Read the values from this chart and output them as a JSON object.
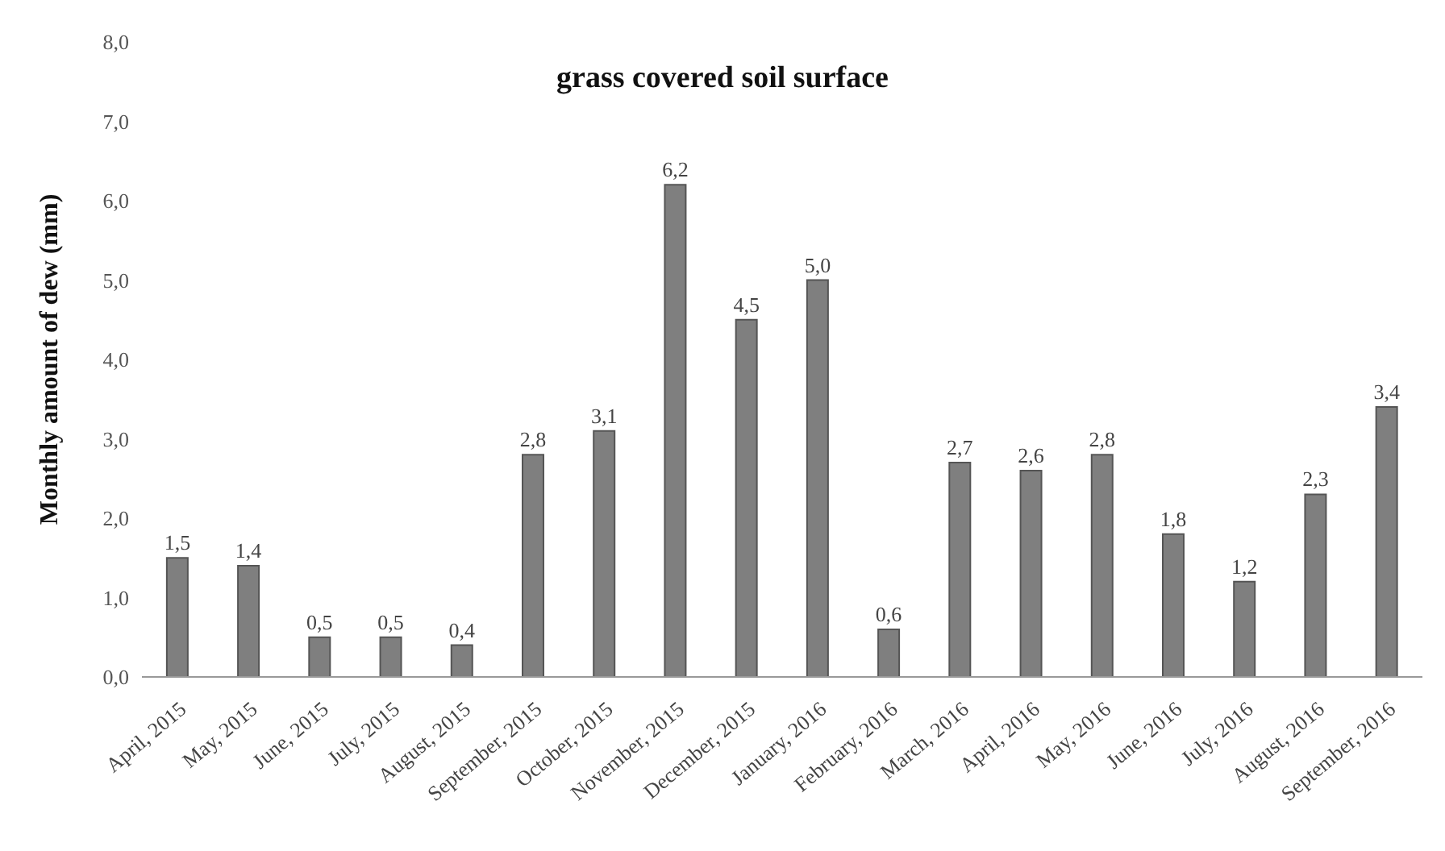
{
  "chart_data": {
    "type": "bar",
    "title": "grass covered soil surface",
    "ylabel": "Monthly amount of dew (mm)",
    "categories": [
      "April, 2015",
      "May, 2015",
      "June, 2015",
      "July, 2015",
      "August, 2015",
      "September, 2015",
      "October, 2015",
      "November, 2015",
      "December, 2015",
      "January, 2016",
      "February, 2016",
      "March, 2016",
      "April, 2016",
      "May, 2016",
      "June, 2016",
      "July, 2016",
      "August, 2016",
      "September, 2016"
    ],
    "values": [
      1.5,
      1.4,
      0.5,
      0.5,
      0.4,
      2.8,
      3.1,
      6.2,
      4.5,
      5.0,
      0.6,
      2.7,
      2.6,
      2.8,
      1.8,
      1.2,
      2.3,
      3.4
    ],
    "value_labels": [
      "1,5",
      "1,4",
      "0,5",
      "0,5",
      "0,4",
      "2,8",
      "3,1",
      "6,2",
      "4,5",
      "5,0",
      "0,6",
      "2,7",
      "2,6",
      "2,8",
      "1,8",
      "1,2",
      "2,3",
      "3,4"
    ],
    "color": "#7f7f7f",
    "ylim": [
      0,
      8
    ],
    "yticks": [
      {
        "value": 0,
        "label": "0,0"
      },
      {
        "value": 1,
        "label": "1,0"
      },
      {
        "value": 2,
        "label": "2,0"
      },
      {
        "value": 3,
        "label": "3,0"
      },
      {
        "value": 4,
        "label": "4,0"
      },
      {
        "value": 5,
        "label": "5,0"
      },
      {
        "value": 6,
        "label": "6,0"
      },
      {
        "value": 7,
        "label": "7,0"
      },
      {
        "value": 8,
        "label": "8,0"
      }
    ],
    "grid": false,
    "legend": false
  }
}
